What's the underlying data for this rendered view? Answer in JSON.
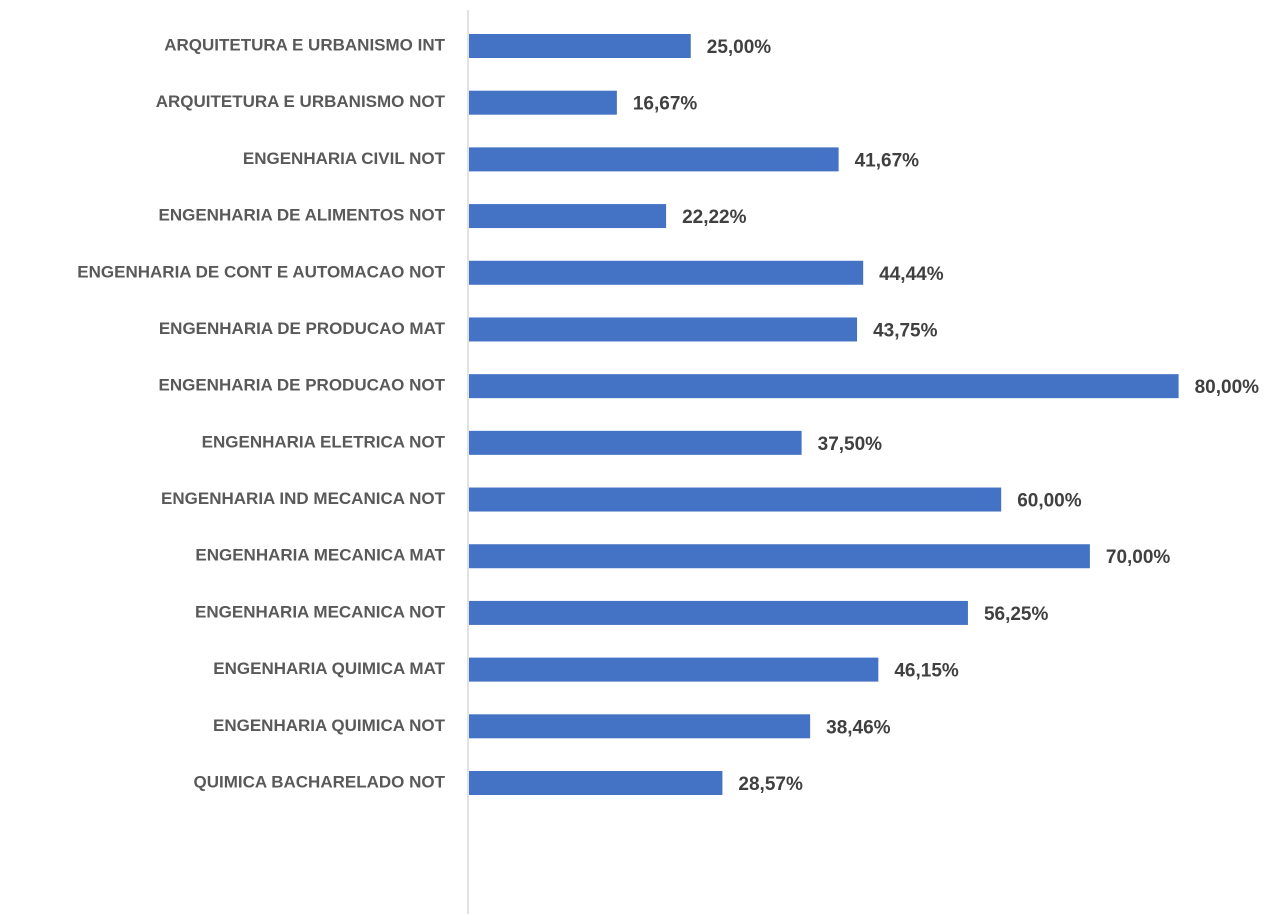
{
  "chart_data": {
    "type": "barh",
    "categories": [
      "ARQUITETURA E URBANISMO INT",
      "ARQUITETURA E URBANISMO NOT",
      "ENGENHARIA CIVIL NOT",
      "ENGENHARIA DE ALIMENTOS NOT",
      "ENGENHARIA DE CONT E AUTOMACAO NOT",
      "ENGENHARIA DE PRODUCAO MAT",
      "ENGENHARIA DE PRODUCAO NOT",
      "ENGENHARIA ELETRICA NOT",
      "ENGENHARIA IND MECANICA NOT",
      "ENGENHARIA MECANICA MAT",
      "ENGENHARIA MECANICA NOT",
      "ENGENHARIA QUIMICA MAT",
      "ENGENHARIA QUIMICA NOT",
      "QUIMICA BACHARELADO NOT"
    ],
    "values": [
      25.0,
      16.67,
      41.67,
      22.22,
      44.44,
      43.75,
      80.0,
      37.5,
      60.0,
      70.0,
      56.25,
      46.15,
      38.46,
      28.57
    ],
    "value_labels": [
      "25,00%",
      "16,67%",
      "41,67%",
      "22,22%",
      "44,44%",
      "43,75%",
      "80,00%",
      "37,50%",
      "60,00%",
      "70,00%",
      "56,25%",
      "46,15%",
      "38,46%",
      "28,57%"
    ],
    "color": "#4472c4"
  }
}
